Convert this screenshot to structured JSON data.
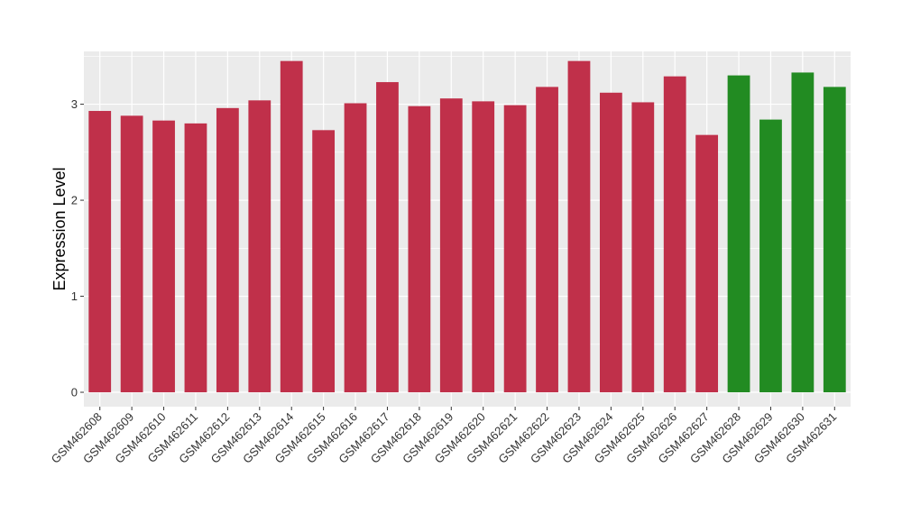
{
  "chart_data": {
    "type": "bar",
    "title": "",
    "xlabel": "",
    "ylabel": "Expression Level",
    "ylim": [
      -0.15,
      3.55
    ],
    "yticks": [
      0,
      1,
      2,
      3
    ],
    "grid": true,
    "background_color": "#EBEBEB",
    "grid_color": "#FFFFFF",
    "categories": [
      "GSM462608",
      "GSM462609",
      "GSM462610",
      "GSM462611",
      "GSM462612",
      "GSM462613",
      "GSM462614",
      "GSM462615",
      "GSM462616",
      "GSM462617",
      "GSM462618",
      "GSM462619",
      "GSM462620",
      "GSM462621",
      "GSM462622",
      "GSM462623",
      "GSM462624",
      "GSM462625",
      "GSM462626",
      "GSM462627",
      "GSM462628",
      "GSM462629",
      "GSM462630",
      "GSM462631"
    ],
    "values": [
      2.93,
      2.88,
      2.83,
      2.8,
      2.96,
      3.04,
      3.45,
      2.73,
      3.01,
      3.23,
      2.98,
      3.06,
      3.03,
      2.99,
      3.18,
      3.45,
      3.12,
      3.02,
      3.29,
      2.68,
      3.3,
      2.84,
      3.33,
      3.18
    ],
    "bar_colors": [
      "#C0304A",
      "#C0304A",
      "#C0304A",
      "#C0304A",
      "#C0304A",
      "#C0304A",
      "#C0304A",
      "#C0304A",
      "#C0304A",
      "#C0304A",
      "#C0304A",
      "#C0304A",
      "#C0304A",
      "#C0304A",
      "#C0304A",
      "#C0304A",
      "#C0304A",
      "#C0304A",
      "#C0304A",
      "#C0304A",
      "#228B22",
      "#228B22",
      "#228B22",
      "#228B22"
    ]
  }
}
